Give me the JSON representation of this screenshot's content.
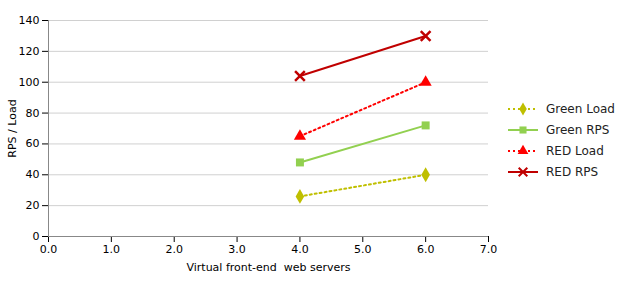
{
  "chart_data": {
    "type": "line",
    "x": [
      4,
      6
    ],
    "series": [
      {
        "name": "Green Load",
        "color": "#BFBF00",
        "marker": "diamond",
        "line_style": "dotted",
        "values": [
          26,
          40
        ]
      },
      {
        "name": "Green RPS",
        "color": "#92D050",
        "marker": "square",
        "line_style": "solid",
        "values": [
          48,
          72
        ]
      },
      {
        "name": "RED Load",
        "color": "#FF0000",
        "marker": "triangle",
        "line_style": "dotted",
        "values": [
          65,
          100
        ]
      },
      {
        "name": "RED RPS",
        "color": "#C00000",
        "marker": "x",
        "line_style": "solid",
        "values": [
          104,
          130
        ]
      }
    ],
    "xlabel": "Virtual front-end  web servers",
    "ylabel": "RPS / Load",
    "xlim": [
      0,
      7
    ],
    "ylim": [
      0,
      140
    ],
    "xticks": [
      0,
      1,
      2,
      3,
      4,
      5,
      6,
      7
    ],
    "yticks": [
      0,
      20,
      40,
      60,
      80,
      100,
      120,
      140
    ],
    "grid": true,
    "legend": "right"
  }
}
